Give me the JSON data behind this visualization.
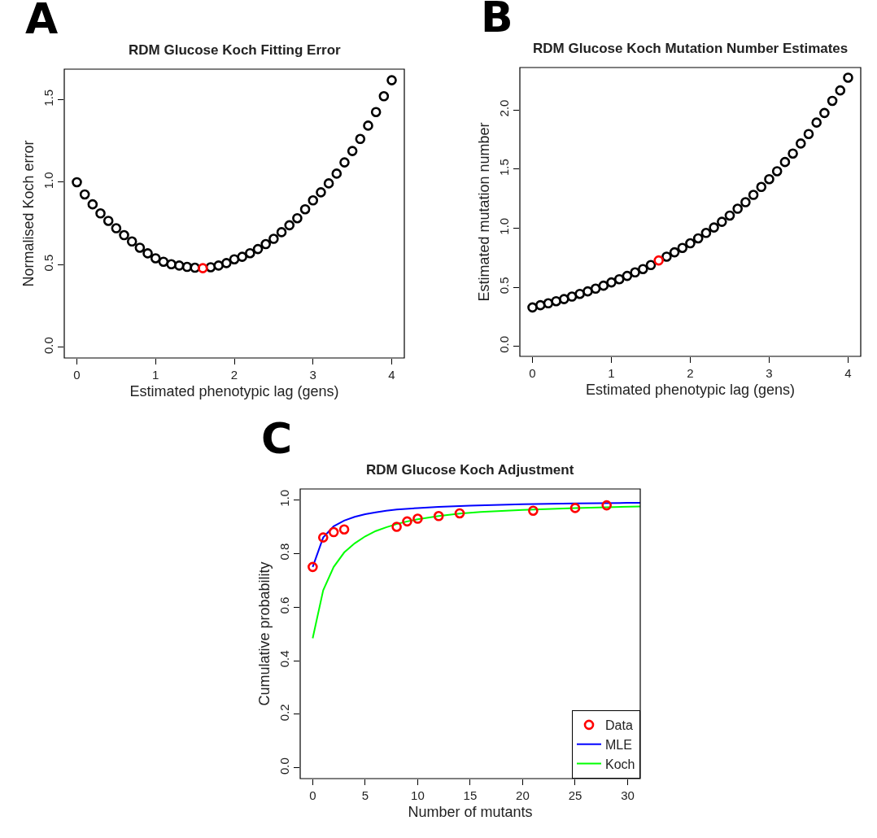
{
  "chart_data": [
    {
      "type": "scatter",
      "title": "RDM Glucose Koch Fitting Error",
      "xlabel": "Estimated phenotypic lag (gens)",
      "ylabel": "Normalised Koch error",
      "annotations": [
        "A"
      ],
      "marker": "circle",
      "legend": false,
      "xlim": [
        -0.16,
        4.16
      ],
      "xticks": [
        0,
        1,
        2,
        3,
        4
      ],
      "ylim": [
        -0.065,
        1.685
      ],
      "yticks": [
        {
          "value": 0,
          "label": "0.0"
        },
        0.5,
        {
          "value": 1,
          "label": "1.0"
        },
        1.5
      ],
      "series": [
        {
          "color": "#000000",
          "x": [
            0,
            0.1,
            0.2,
            0.3,
            0.4,
            0.5,
            0.6,
            0.7,
            0.8,
            0.9,
            1.0,
            1.1,
            1.2,
            1.3,
            1.4,
            1.5,
            1.6,
            1.7,
            1.8,
            1.9,
            2.0,
            2.1,
            2.2,
            2.3,
            2.4,
            2.5,
            2.6,
            2.7,
            2.8,
            2.9,
            3.0,
            3.1,
            3.2,
            3.3,
            3.4,
            3.5,
            3.6,
            3.7,
            3.8,
            3.9,
            4.0
          ],
          "values": [
            1.0,
            0.926,
            0.866,
            0.811,
            0.766,
            0.721,
            0.679,
            0.641,
            0.603,
            0.569,
            0.539,
            0.518,
            0.503,
            0.495,
            0.487,
            0.482,
            null,
            0.485,
            0.495,
            0.51,
            0.533,
            0.548,
            0.57,
            0.595,
            0.625,
            0.657,
            0.697,
            0.739,
            0.782,
            0.836,
            0.89,
            0.939,
            0.993,
            1.052,
            1.12,
            1.189,
            1.262,
            1.343,
            1.425,
            1.521,
            1.618
          ]
        },
        {
          "color": "#ff0000",
          "x": [
            1.6
          ],
          "values": [
            0.479
          ]
        }
      ]
    },
    {
      "type": "scatter",
      "title": "RDM Glucose Koch Mutation Number Estimates",
      "xlabel": "Estimated phenotypic lag (gens)",
      "ylabel": "Estimated mutation number",
      "annotations": [
        "B"
      ],
      "marker": "circle",
      "legend": false,
      "xlim": [
        -0.16,
        4.16
      ],
      "xticks": [
        0,
        1,
        2,
        3,
        4
      ],
      "ylim": [
        -0.085,
        2.36
      ],
      "yticks": [
        {
          "value": 0,
          "label": "0.0"
        },
        0.5,
        {
          "value": 1,
          "label": "1.0"
        },
        1.5,
        {
          "value": 2,
          "label": "2.0"
        }
      ],
      "series": [
        {
          "color": "#000000",
          "x": [
            0,
            0.1,
            0.2,
            0.3,
            0.4,
            0.5,
            0.6,
            0.7,
            0.8,
            0.9,
            1.0,
            1.1,
            1.2,
            1.3,
            1.4,
            1.5,
            1.6,
            1.7,
            1.8,
            1.9,
            2.0,
            2.1,
            2.2,
            2.3,
            2.4,
            2.5,
            2.6,
            2.7,
            2.8,
            2.9,
            3.0,
            3.1,
            3.2,
            3.3,
            3.4,
            3.5,
            3.6,
            3.7,
            3.8,
            3.9,
            4.0
          ],
          "values": [
            0.329,
            0.348,
            0.364,
            0.382,
            0.4,
            0.421,
            0.444,
            0.465,
            0.488,
            0.513,
            0.541,
            0.568,
            0.596,
            0.626,
            0.654,
            0.688,
            null,
            0.759,
            0.796,
            0.833,
            0.872,
            0.914,
            0.96,
            1.006,
            1.054,
            1.107,
            1.165,
            1.22,
            1.282,
            1.349,
            1.415,
            1.482,
            1.56,
            1.632,
            1.717,
            1.797,
            1.894,
            1.975,
            2.078,
            2.166,
            2.274
          ]
        },
        {
          "color": "#ff0000",
          "x": [
            1.6
          ],
          "values": [
            0.727
          ]
        }
      ]
    },
    {
      "type": "scatter",
      "title": "RDM Glucose Koch Adjustment",
      "xlabel": "Number of mutants",
      "ylabel": "Cumulative probability",
      "annotations": [
        "C"
      ],
      "marker": "circle",
      "legend": "bottom right",
      "xlim": [
        -1.19,
        31.2
      ],
      "xticks": [
        0,
        5,
        10,
        15,
        20,
        25,
        30
      ],
      "ylim": [
        -0.04,
        1.041
      ],
      "yticks": [
        {
          "value": 0,
          "label": "0.0"
        },
        0.2,
        0.4,
        0.6,
        0.8,
        {
          "value": 1,
          "label": "1.0"
        }
      ],
      "series": [
        {
          "name": "Data",
          "color": "#ff0000",
          "x": [
            0,
            1,
            2,
            3,
            8,
            9,
            10,
            12,
            14,
            21,
            25,
            28
          ],
          "values": [
            0.75,
            0.86,
            0.88,
            0.89,
            0.9,
            0.92,
            0.93,
            0.94,
            0.95,
            0.96,
            0.97,
            0.98
          ]
        },
        {
          "name": "MLE",
          "type": "line",
          "marker": "none",
          "color": "#0000ff",
          "x": [
            0,
            1,
            2,
            3,
            4,
            5,
            6,
            7,
            8,
            10,
            12,
            15,
            20,
            25,
            30,
            31.2
          ],
          "values": [
            0.75,
            0.86,
            0.902,
            0.923,
            0.937,
            0.947,
            0.954,
            0.96,
            0.964,
            0.97,
            0.974,
            0.979,
            0.984,
            0.987,
            0.989,
            0.989
          ]
        },
        {
          "name": "Koch",
          "type": "line",
          "marker": "none",
          "color": "#00ff00",
          "x": [
            0,
            1,
            2,
            3,
            4,
            5,
            6,
            7,
            8,
            9,
            10,
            12,
            14,
            16,
            20,
            25,
            28,
            31.2
          ],
          "values": [
            0.484,
            0.663,
            0.75,
            0.804,
            0.838,
            0.864,
            0.884,
            0.898,
            0.91,
            0.92,
            0.928,
            0.94,
            0.949,
            0.955,
            0.963,
            0.97,
            0.973,
            0.976
          ]
        }
      ]
    }
  ]
}
